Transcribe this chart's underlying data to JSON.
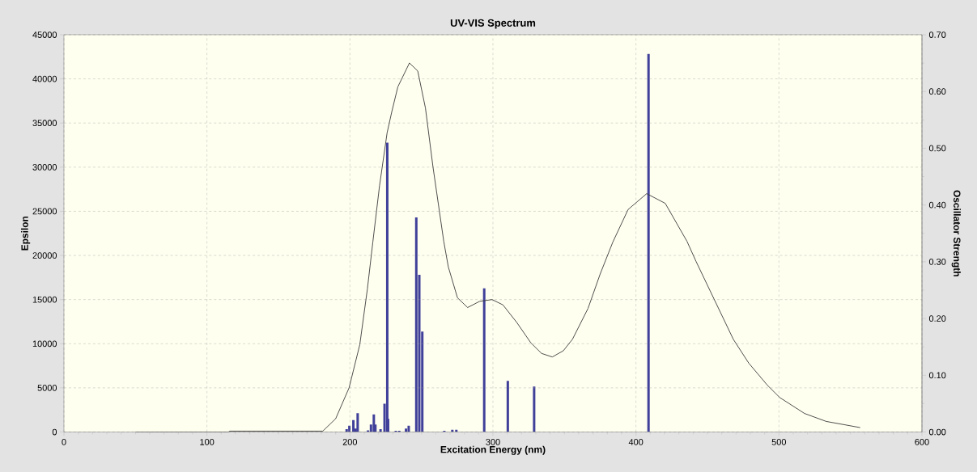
{
  "chart_data": {
    "type": "bar",
    "title": "UV-VIS Spectrum",
    "xlabel": "Excitation Energy (nm)",
    "ylabel": "Epsilon",
    "y2label": "Oscillator Strength",
    "xlim": [
      0,
      600
    ],
    "ylim": [
      0,
      45000
    ],
    "y2lim": [
      0,
      0.7
    ],
    "xticks": [
      0,
      {
        "value": 10,
        "label": null
      },
      {
        "value": 20,
        "label": null
      },
      {
        "value": 30,
        "label": null
      },
      {
        "value": 40,
        "label": null
      },
      {
        "value": 50,
        "label": null
      },
      {
        "value": 60,
        "label": null
      },
      {
        "value": 70,
        "label": null
      },
      {
        "value": 80,
        "label": null
      },
      {
        "value": 90,
        "label": null
      },
      100,
      {
        "value": 110,
        "label": null
      },
      {
        "value": 120,
        "label": null
      },
      {
        "value": 130,
        "label": null
      },
      {
        "value": 140,
        "label": null
      },
      {
        "value": 150,
        "label": null
      },
      {
        "value": 160,
        "label": null
      },
      {
        "value": 170,
        "label": null
      },
      {
        "value": 180,
        "label": null
      },
      {
        "value": 190,
        "label": null
      },
      200,
      {
        "value": 210,
        "label": null
      },
      {
        "value": 220,
        "label": null
      },
      {
        "value": 230,
        "label": null
      },
      {
        "value": 240,
        "label": null
      },
      {
        "value": 250,
        "label": null
      },
      {
        "value": 260,
        "label": null
      },
      {
        "value": 270,
        "label": null
      },
      {
        "value": 280,
        "label": null
      },
      {
        "value": 290,
        "label": null
      },
      300,
      {
        "value": 310,
        "label": null
      },
      {
        "value": 320,
        "label": null
      },
      {
        "value": 330,
        "label": null
      },
      {
        "value": 340,
        "label": null
      },
      {
        "value": 350,
        "label": null
      },
      {
        "value": 360,
        "label": null
      },
      {
        "value": 370,
        "label": null
      },
      {
        "value": 380,
        "label": null
      },
      {
        "value": 390,
        "label": null
      },
      400,
      {
        "value": 410,
        "label": null
      },
      {
        "value": 420,
        "label": null
      },
      {
        "value": 430,
        "label": null
      },
      {
        "value": 440,
        "label": null
      },
      {
        "value": 450,
        "label": null
      },
      {
        "value": 460,
        "label": null
      },
      {
        "value": 470,
        "label": null
      },
      {
        "value": 480,
        "label": null
      },
      {
        "value": 490,
        "label": null
      },
      500,
      {
        "value": 510,
        "label": null
      },
      {
        "value": 520,
        "label": null
      },
      {
        "value": 530,
        "label": null
      },
      {
        "value": 540,
        "label": null
      },
      {
        "value": 550,
        "label": null
      },
      {
        "value": 560,
        "label": null
      },
      {
        "value": 570,
        "label": null
      },
      {
        "value": 580,
        "label": null
      },
      {
        "value": 590,
        "label": null
      },
      600
    ],
    "yticks": [
      0,
      5000,
      10000,
      15000,
      20000,
      25000,
      30000,
      35000,
      40000,
      45000
    ],
    "y2ticks": [
      {
        "value": 0,
        "label": "0.00"
      },
      {
        "value": 0.05,
        "label": null
      },
      {
        "value": 0.1,
        "label": "0.10"
      },
      {
        "value": 0.15,
        "label": null
      },
      {
        "value": 0.2,
        "label": "0.20"
      },
      {
        "value": 0.25,
        "label": null
      },
      {
        "value": 0.3,
        "label": "0.30"
      },
      {
        "value": 0.35,
        "label": null
      },
      {
        "value": 0.4,
        "label": "0.40"
      },
      {
        "value": 0.45,
        "label": null
      },
      {
        "value": 0.5,
        "label": "0.50"
      },
      {
        "value": 0.55,
        "label": null
      },
      {
        "value": 0.6,
        "label": "0.60"
      },
      {
        "value": 0.65,
        "label": null
      },
      {
        "value": 0.7,
        "label": "0.70"
      }
    ],
    "grid": true,
    "line_style": "solid",
    "series": [
      {
        "type": "line",
        "color": "#3a3a3a",
        "x": [
          50,
          115,
          116,
          181,
          190,
          199.4,
          206.9,
          212.2,
          216,
          220.7,
          226,
          229.3,
          233.5,
          241.6,
          247.4,
          252.8,
          258.1,
          265.6,
          268.8,
          275.2,
          282.3,
          290.7,
          299.4,
          307,
          316.7,
          326.5,
          334,
          341.5,
          349.2,
          355.6,
          366.5,
          375,
          383.8,
          394.5,
          407.5,
          420.5,
          435.7,
          442.1,
          455.1,
          468.1,
          478.9,
          491.9,
          500.6,
          517.9,
          533,
          556.8
        ],
        "values": [
          0,
          0,
          100,
          100,
          1500,
          5000,
          9900,
          16200,
          21500,
          27900,
          33900,
          36300,
          39100,
          41800,
          40900,
          36700,
          30000,
          21600,
          18700,
          15200,
          14100,
          14800,
          15000,
          14400,
          12400,
          10100,
          8900,
          8500,
          9200,
          10500,
          14000,
          17900,
          21500,
          25200,
          27000,
          25900,
          21600,
          19300,
          14900,
          10500,
          7800,
          5300,
          3900,
          2100,
          1200,
          500
        ]
      },
      {
        "axis": "y2",
        "color": "#40409a",
        "x": [
          197.7,
          199.6,
          202.4,
          204.0,
          205.4,
          212.6,
          214.7,
          216.7,
          217.8,
          221.4,
          224.2,
          226.1,
          226.7,
          232.1,
          234.5,
          239.2,
          241.1,
          246.4,
          248.5,
          250.6,
          266,
          271.6,
          274.4,
          293.9,
          310.4,
          328.8,
          408.8
        ],
        "values": [
          0.005,
          0.011,
          0.021,
          0.006,
          0.033,
          0.003,
          0.013,
          0.031,
          0.013,
          0.005,
          0.05,
          0.51,
          0.023,
          0.002,
          0.002,
          0.006,
          0.011,
          0.378,
          0.277,
          0.177,
          0.002,
          0.004,
          0.004,
          0.253,
          0.09,
          0.08,
          0.666
        ]
      }
    ]
  }
}
